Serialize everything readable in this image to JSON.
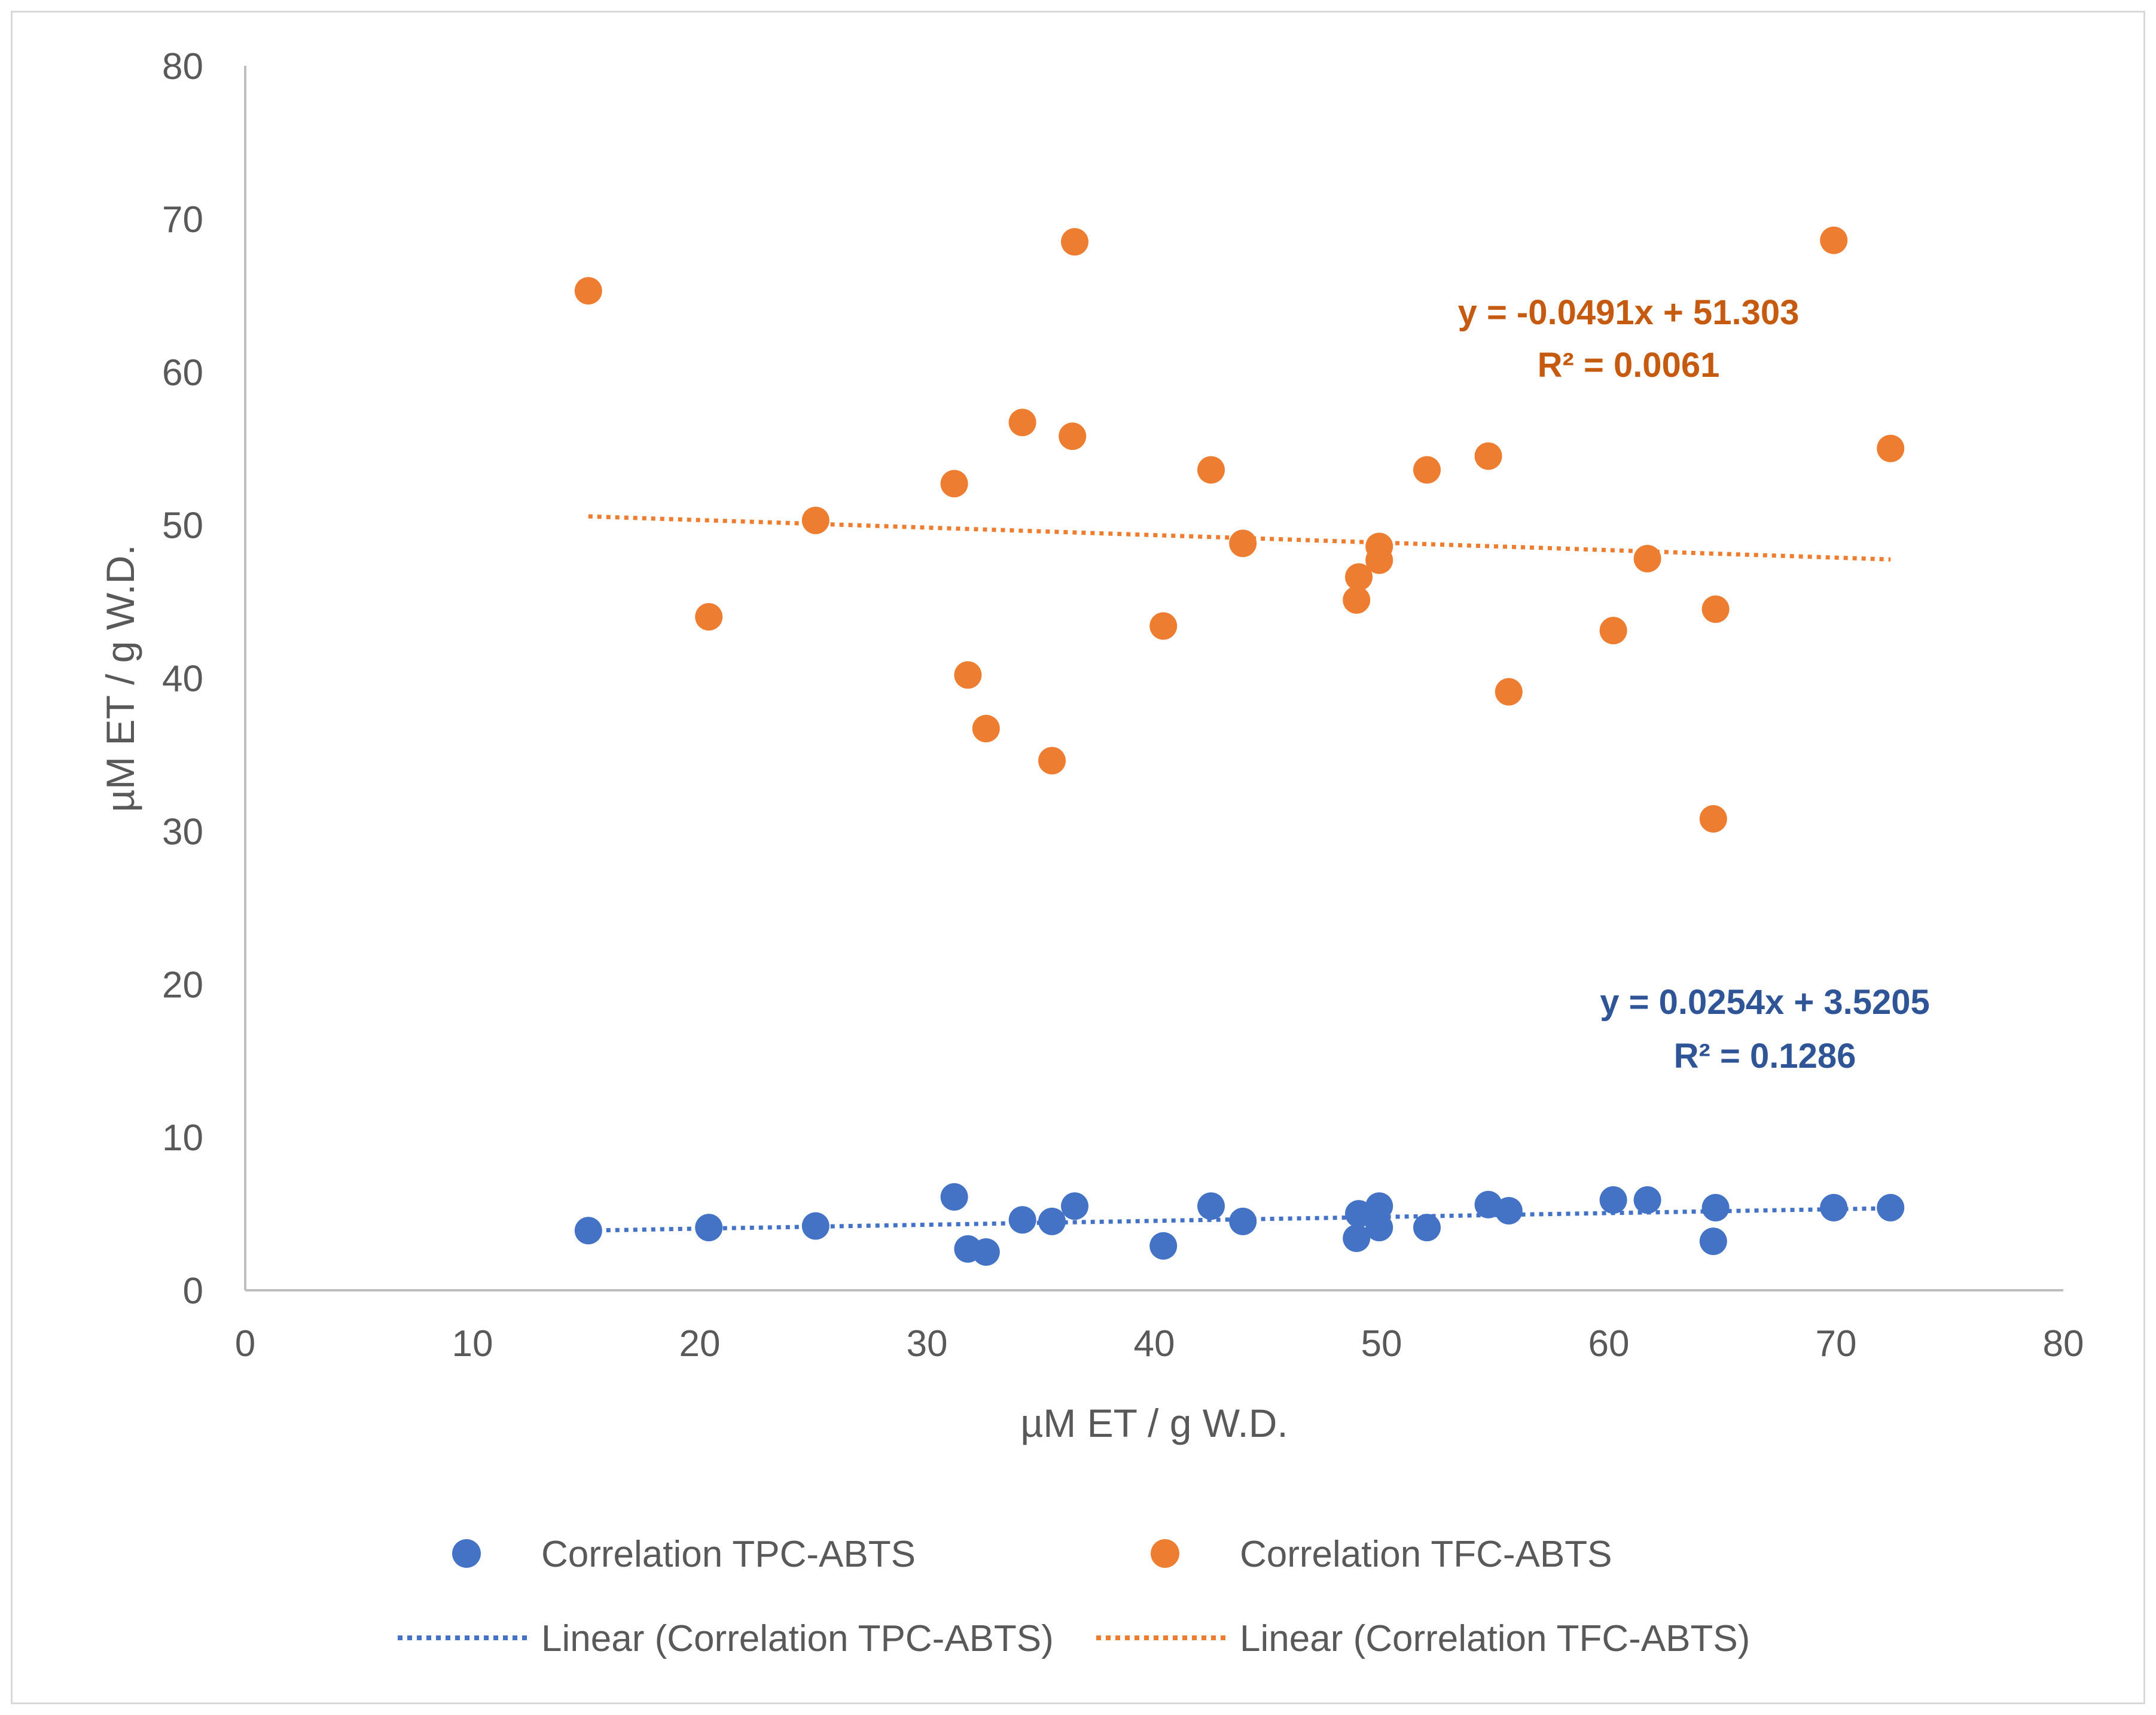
{
  "chart_data": {
    "type": "scatter",
    "title": "",
    "xlabel": "µM ET / g W.D.",
    "ylabel": "µM ET / g W.D.",
    "xlim": [
      0,
      80
    ],
    "ylim": [
      0,
      80
    ],
    "xticks": [
      0,
      10,
      20,
      30,
      40,
      50,
      60,
      70,
      80
    ],
    "yticks": [
      0,
      10,
      20,
      30,
      40,
      50,
      60,
      70,
      80
    ],
    "xtick_labels": [
      "0",
      "10",
      "20",
      "30",
      "40",
      "50",
      "60",
      "70",
      "80"
    ],
    "ytick_labels": [
      "0",
      "10",
      "20",
      "30",
      "40",
      "50",
      "60",
      "70",
      "80"
    ],
    "grid": false,
    "legend_position": "bottom",
    "series": [
      {
        "name": "Correlation TPC-ABTS",
        "color": "#4472c4",
        "points": [
          [
            15.1,
            3.9
          ],
          [
            20.4,
            4.1
          ],
          [
            25.1,
            4.2
          ],
          [
            31.2,
            6.1
          ],
          [
            31.8,
            2.7
          ],
          [
            32.6,
            2.5
          ],
          [
            34.2,
            4.6
          ],
          [
            35.5,
            4.5
          ],
          [
            36.5,
            5.5
          ],
          [
            40.4,
            2.9
          ],
          [
            42.5,
            5.5
          ],
          [
            43.9,
            4.5
          ],
          [
            48.9,
            3.4
          ],
          [
            49.0,
            5.0
          ],
          [
            49.9,
            5.5
          ],
          [
            49.9,
            4.1
          ],
          [
            52.0,
            4.1
          ],
          [
            54.7,
            5.6
          ],
          [
            55.6,
            5.2
          ],
          [
            60.2,
            5.9
          ],
          [
            61.7,
            5.9
          ],
          [
            64.6,
            3.2
          ],
          [
            64.7,
            5.4
          ],
          [
            69.9,
            5.4
          ],
          [
            72.4,
            5.4
          ]
        ],
        "trendline": {
          "label": "Linear (Correlation TPC-ABTS)",
          "slope": 0.0254,
          "intercept": 3.5205,
          "x_range": [
            15.1,
            72.4
          ],
          "equation": "y = 0.0254x + 3.5205",
          "r_squared": "R² = 0.1286",
          "color": "#4472c4",
          "label_color": "#2f5597"
        }
      },
      {
        "name": "Correlation TFC-ABTS",
        "color": "#ed7d31",
        "points": [
          [
            15.1,
            65.3
          ],
          [
            20.4,
            44.0
          ],
          [
            25.1,
            50.3
          ],
          [
            31.2,
            52.7
          ],
          [
            31.8,
            40.2
          ],
          [
            32.6,
            36.7
          ],
          [
            34.2,
            56.7
          ],
          [
            35.5,
            34.6
          ],
          [
            36.5,
            68.5
          ],
          [
            36.4,
            55.8
          ],
          [
            40.4,
            43.4
          ],
          [
            42.5,
            53.6
          ],
          [
            43.9,
            48.8
          ],
          [
            48.9,
            45.1
          ],
          [
            49.0,
            46.6
          ],
          [
            49.9,
            48.6
          ],
          [
            49.9,
            47.7
          ],
          [
            52.0,
            53.6
          ],
          [
            54.7,
            54.5
          ],
          [
            55.6,
            39.1
          ],
          [
            60.2,
            43.1
          ],
          [
            61.7,
            47.8
          ],
          [
            64.6,
            30.8
          ],
          [
            64.7,
            44.5
          ],
          [
            69.9,
            68.6
          ],
          [
            72.4,
            55.0
          ]
        ],
        "trendline": {
          "label": "Linear (Correlation TFC-ABTS)",
          "slope": -0.0491,
          "intercept": 51.303,
          "x_range": [
            15.1,
            72.4
          ],
          "equation": "y = -0.0491x + 51.303",
          "r_squared": "R² = 0.0061",
          "color": "#ed7d31",
          "label_color": "#c55a11"
        }
      }
    ]
  }
}
